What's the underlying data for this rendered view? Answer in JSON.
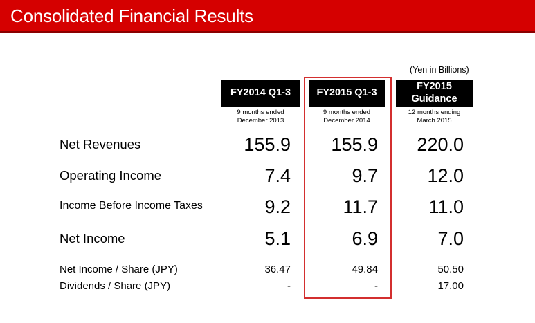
{
  "title": "Consolidated Financial Results",
  "unit_note": "(Yen in Billions)",
  "columns": [
    {
      "header": "FY2014 Q1-3",
      "sub1": "9 months ended",
      "sub2": "December 2013"
    },
    {
      "header": "FY2015 Q1-3",
      "sub1": "9 months ended",
      "sub2": "December 2014"
    },
    {
      "header_line1": "FY2015",
      "header_line2": "Guidance",
      "sub1": "12 months ending",
      "sub2": "March 2015"
    }
  ],
  "rows": [
    {
      "label": "Net Revenues",
      "values": [
        "155.9",
        "155.9",
        "220.0"
      ]
    },
    {
      "label": "Operating Income",
      "values": [
        "7.4",
        "9.7",
        "12.0"
      ]
    },
    {
      "label": "Income Before Income Taxes",
      "values": [
        "9.2",
        "11.7",
        "11.0"
      ]
    },
    {
      "label": "Net Income",
      "values": [
        "5.1",
        "6.9",
        "7.0"
      ]
    },
    {
      "label": "Net Income / Share (JPY)",
      "values": [
        "36.47",
        "49.84",
        "50.50"
      ]
    },
    {
      "label": "Dividends / Share (JPY)",
      "values": [
        "-",
        "-",
        "17.00"
      ]
    }
  ],
  "colors": {
    "title_bar": "#d50000",
    "highlight_border": "#d32f2f",
    "header_bg": "#000000"
  }
}
